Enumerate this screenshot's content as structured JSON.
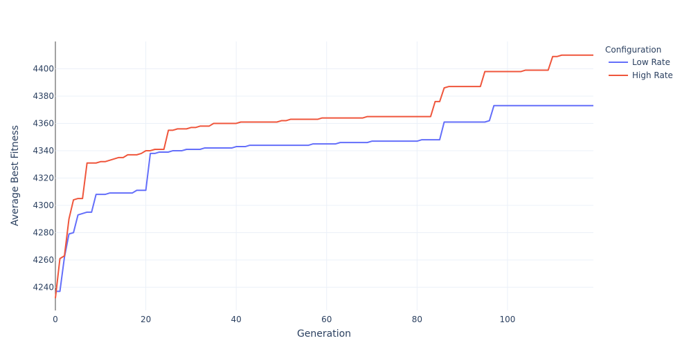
{
  "chart_data": {
    "type": "line",
    "xlabel": "Generation",
    "ylabel": "Average Best Fitness",
    "xlim": [
      0,
      119
    ],
    "ylim": [
      4223,
      4420
    ],
    "xticks": [
      0,
      20,
      40,
      60,
      80,
      100
    ],
    "yticks": [
      4240,
      4260,
      4280,
      4300,
      4320,
      4340,
      4360,
      4380,
      4400
    ],
    "grid": true,
    "legend": {
      "title": "Configuration",
      "placement": "top-right"
    },
    "series": [
      {
        "name": "Low Rate",
        "color": "#636efa",
        "points": [
          [
            0,
            4237
          ],
          [
            1,
            4237
          ],
          [
            2,
            4262
          ],
          [
            3,
            4279
          ],
          [
            4,
            4280
          ],
          [
            5,
            4293
          ],
          [
            7,
            4295
          ],
          [
            8,
            4295
          ],
          [
            9,
            4308
          ],
          [
            11,
            4308
          ],
          [
            12,
            4309
          ],
          [
            17,
            4309
          ],
          [
            18,
            4311
          ],
          [
            20,
            4311
          ],
          [
            21,
            4338
          ],
          [
            22,
            4338
          ],
          [
            23,
            4339
          ],
          [
            25,
            4339
          ],
          [
            26,
            4340
          ],
          [
            28,
            4340
          ],
          [
            29,
            4341
          ],
          [
            32,
            4341
          ],
          [
            33,
            4342
          ],
          [
            39,
            4342
          ],
          [
            40,
            4343
          ],
          [
            42,
            4343
          ],
          [
            43,
            4344
          ],
          [
            56,
            4344
          ],
          [
            57,
            4345
          ],
          [
            62,
            4345
          ],
          [
            63,
            4346
          ],
          [
            69,
            4346
          ],
          [
            70,
            4347
          ],
          [
            80,
            4347
          ],
          [
            81,
            4348
          ],
          [
            85,
            4348
          ],
          [
            86,
            4361
          ],
          [
            95,
            4361
          ],
          [
            96,
            4362
          ],
          [
            97,
            4373
          ],
          [
            119,
            4373
          ]
        ]
      },
      {
        "name": "High Rate",
        "color": "#ef553b",
        "points": [
          [
            0,
            4232
          ],
          [
            1,
            4261
          ],
          [
            2,
            4263
          ],
          [
            3,
            4290
          ],
          [
            4,
            4304
          ],
          [
            5,
            4305
          ],
          [
            6,
            4305
          ],
          [
            7,
            4331
          ],
          [
            9,
            4331
          ],
          [
            10,
            4332
          ],
          [
            11,
            4332
          ],
          [
            12,
            4333
          ],
          [
            14,
            4335
          ],
          [
            15,
            4335
          ],
          [
            16,
            4337
          ],
          [
            18,
            4337
          ],
          [
            19,
            4338
          ],
          [
            20,
            4340
          ],
          [
            21,
            4340
          ],
          [
            22,
            4341
          ],
          [
            24,
            4341
          ],
          [
            25,
            4355
          ],
          [
            26,
            4355
          ],
          [
            27,
            4356
          ],
          [
            29,
            4356
          ],
          [
            30,
            4357
          ],
          [
            31,
            4357
          ],
          [
            32,
            4358
          ],
          [
            34,
            4358
          ],
          [
            35,
            4360
          ],
          [
            40,
            4360
          ],
          [
            41,
            4361
          ],
          [
            49,
            4361
          ],
          [
            50,
            4362
          ],
          [
            51,
            4362
          ],
          [
            52,
            4363
          ],
          [
            58,
            4363
          ],
          [
            59,
            4364
          ],
          [
            68,
            4364
          ],
          [
            69,
            4365
          ],
          [
            83,
            4365
          ],
          [
            84,
            4376
          ],
          [
            85,
            4376
          ],
          [
            86,
            4386
          ],
          [
            87,
            4387
          ],
          [
            94,
            4387
          ],
          [
            95,
            4398
          ],
          [
            103,
            4398
          ],
          [
            104,
            4399
          ],
          [
            109,
            4399
          ],
          [
            110,
            4409
          ],
          [
            111,
            4409
          ],
          [
            112,
            4410
          ],
          [
            119,
            4410
          ]
        ]
      }
    ]
  }
}
